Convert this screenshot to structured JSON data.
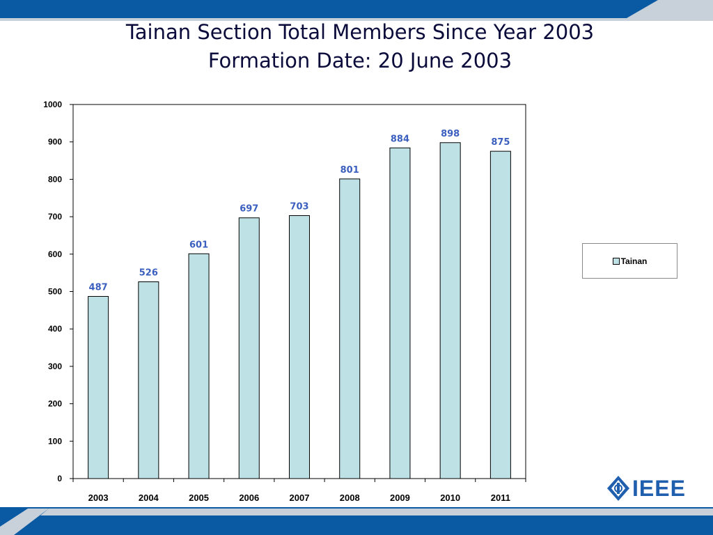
{
  "slide": {
    "title_line1": "Tainan Section Total Members Since Year 2003",
    "title_line2": "Formation Date: 20 June 2003",
    "logo_text": "IEEE",
    "colors": {
      "banner": "#0a5aa3",
      "banner_light": "#b9c3cf",
      "title": "#0b0b3b",
      "logo": "#1f5fae"
    }
  },
  "chart_data": {
    "type": "bar",
    "categories": [
      "2003",
      "2004",
      "2005",
      "2006",
      "2007",
      "2008",
      "2009",
      "2010",
      "2011"
    ],
    "series": [
      {
        "name": "Tainan",
        "values": [
          487,
          526,
          601,
          697,
          703,
          801,
          884,
          898,
          875
        ],
        "color": "#bde1e4"
      }
    ],
    "data_labels": [
      "487",
      "526",
      "601",
      "697",
      "703",
      "801",
      "884",
      "898",
      "875"
    ],
    "data_label_color": "#3b5fbf",
    "ylim": [
      0,
      1000
    ],
    "yticks": [
      0,
      100,
      200,
      300,
      400,
      500,
      600,
      700,
      800,
      900,
      1000
    ],
    "grid": false,
    "legend": "right",
    "xlabel": "",
    "ylabel": ""
  }
}
